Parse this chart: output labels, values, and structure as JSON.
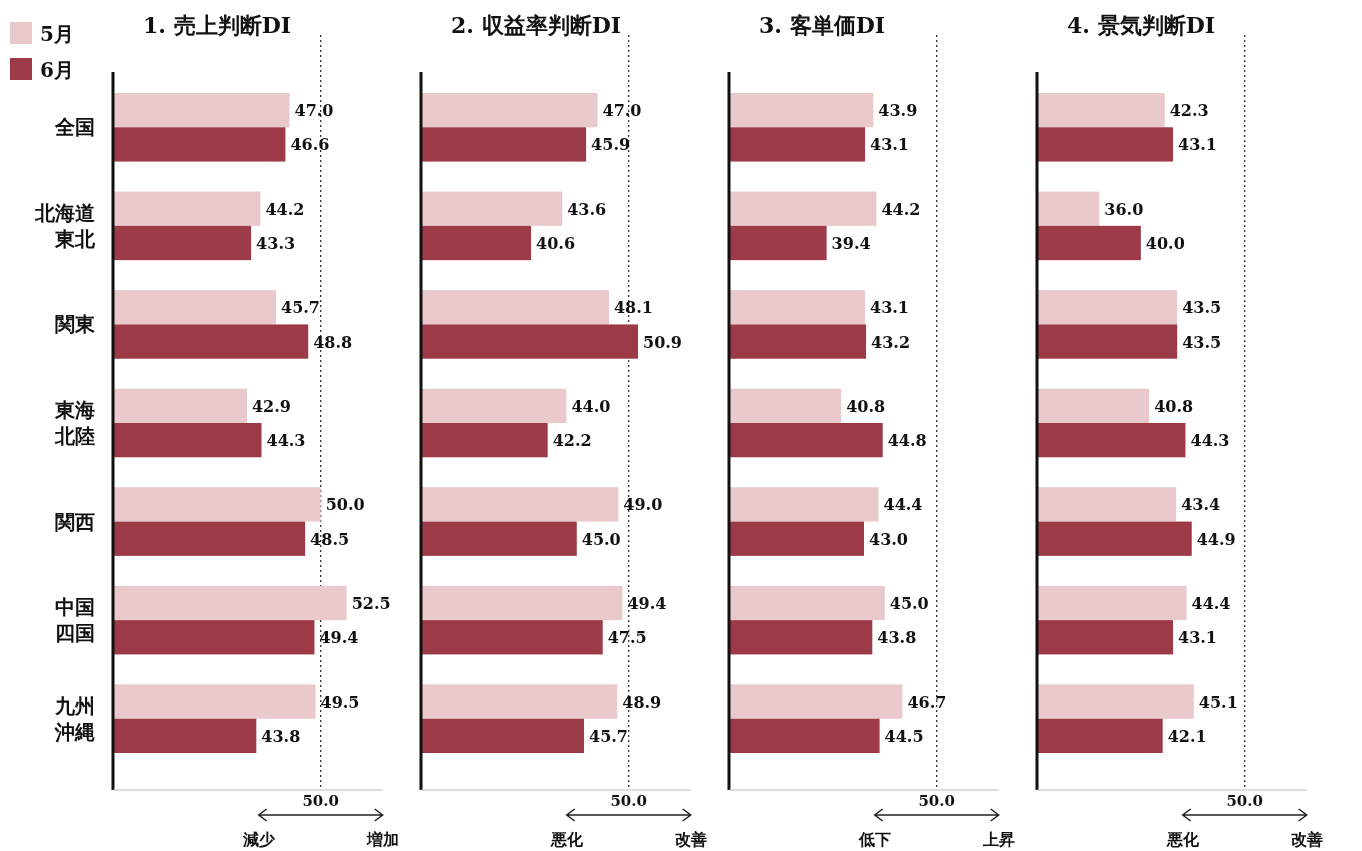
{
  "chart_data": [
    {
      "type": "bar",
      "orientation": "horizontal",
      "title": "1. 売上判断DI",
      "categories": [
        "全国",
        "北海道東北",
        "関東",
        "東海北陸",
        "関西",
        "中国四国",
        "九州沖縄"
      ],
      "xlim": [
        30,
        56
      ],
      "legend": "top left",
      "tick_labels": "y",
      "series": [
        {
          "name": "5月",
          "color": "#e9c9cb",
          "values": [
            47.0,
            44.2,
            45.7,
            42.9,
            50.0,
            52.5,
            49.5
          ],
          "value_labels": [
            "47.0",
            "44.2",
            "45.7",
            "42.9",
            "50.0",
            "52.5",
            "49.5"
          ]
        },
        {
          "name": "6月",
          "color": "#9c3a47",
          "values": [
            46.6,
            43.3,
            48.8,
            44.3,
            48.5,
            49.4,
            43.8
          ],
          "value_labels": [
            "46.6",
            "43.3",
            "48.8",
            "44.3",
            "48.5",
            "49.4",
            "43.8"
          ]
        }
      ],
      "ref_lines": [
        {
          "axis": "x",
          "value": 50,
          "label": "50.0",
          "line_style": "dotted"
        }
      ],
      "annotations": [
        "減少",
        "増加"
      ]
    },
    {
      "type": "bar",
      "orientation": "horizontal",
      "title": "2. 収益率判断DI",
      "categories": [
        null,
        null,
        null,
        null,
        null,
        null,
        null
      ],
      "xlim": [
        30,
        56
      ],
      "tick_labels": false,
      "series": [
        {
          "color": "#e9c9cb",
          "values": [
            47.0,
            43.6,
            48.1,
            44.0,
            49.0,
            49.4,
            48.9
          ],
          "value_labels": [
            "47.0",
            "43.6",
            "48.1",
            "44.0",
            "49.0",
            "49.4",
            "48.9"
          ]
        },
        {
          "color": "#9c3a47",
          "values": [
            45.9,
            40.6,
            50.9,
            42.2,
            45.0,
            47.5,
            45.7
          ],
          "value_labels": [
            "45.9",
            "40.6",
            "50.9",
            "42.2",
            "45.0",
            "47.5",
            "45.7"
          ]
        }
      ],
      "ref_lines": [
        {
          "axis": "x",
          "value": 50,
          "label": "50.0",
          "line_style": "dotted"
        }
      ],
      "annotations": [
        "悪化",
        "改善"
      ]
    },
    {
      "type": "bar",
      "orientation": "horizontal",
      "title": "3. 客単価DI",
      "categories": [
        null,
        null,
        null,
        null,
        null,
        null,
        null
      ],
      "xlim": [
        30,
        56
      ],
      "tick_labels": false,
      "series": [
        {
          "color": "#e9c9cb",
          "values": [
            43.9,
            44.2,
            43.1,
            40.8,
            44.4,
            45.0,
            46.7
          ],
          "value_labels": [
            "43.9",
            "44.2",
            "43.1",
            "40.8",
            "44.4",
            "45.0",
            "46.7"
          ]
        },
        {
          "color": "#9c3a47",
          "values": [
            43.1,
            39.4,
            43.2,
            44.8,
            43.0,
            43.8,
            44.5
          ],
          "value_labels": [
            "43.1",
            "39.4",
            "43.2",
            "44.8",
            "43.0",
            "43.8",
            "44.5"
          ]
        }
      ],
      "ref_lines": [
        {
          "axis": "x",
          "value": 50,
          "label": "50.0",
          "line_style": "dotted"
        }
      ],
      "annotations": [
        "低下",
        "上昇"
      ]
    },
    {
      "type": "bar",
      "orientation": "horizontal",
      "title": "4. 景気判断DI",
      "categories": [
        null,
        null,
        null,
        null,
        null,
        null,
        null
      ],
      "xlim": [
        30,
        56
      ],
      "tick_labels": false,
      "series": [
        {
          "color": "#e9c9cb",
          "values": [
            42.3,
            36.0,
            43.5,
            40.8,
            43.4,
            44.4,
            45.1
          ],
          "value_labels": [
            "42.3",
            "36.0",
            "43.5",
            "40.8",
            "43.4",
            "44.4",
            "45.1"
          ]
        },
        {
          "color": "#9c3a47",
          "values": [
            43.1,
            40.0,
            43.5,
            44.3,
            44.9,
            43.1,
            42.1
          ],
          "value_labels": [
            "43.1",
            "40.0",
            "43.5",
            "44.3",
            "44.9",
            "43.1",
            "42.1"
          ]
        }
      ],
      "ref_lines": [
        {
          "axis": "x",
          "value": 50,
          "label": "50.0",
          "line_style": "dotted"
        }
      ],
      "annotations": [
        "悪化",
        "改善"
      ]
    }
  ]
}
